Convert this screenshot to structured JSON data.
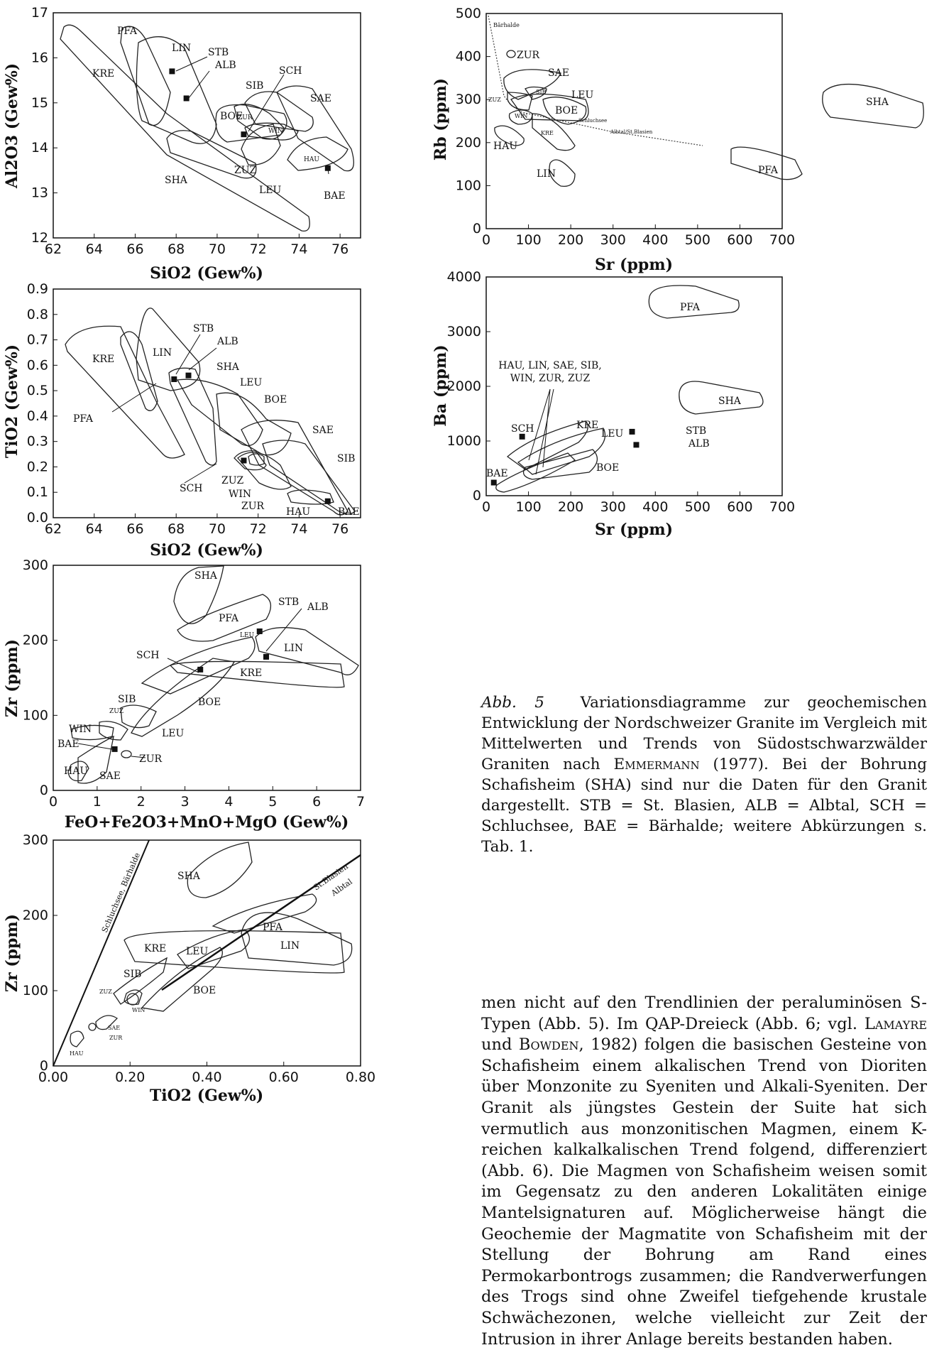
{
  "charts": [
    {
      "id": "al2o3_sio2",
      "xlabel": "SiO2 (Gew%)",
      "ylabel": "Al2O3 (Gew%)",
      "xticks": [
        "62",
        "64",
        "66",
        "68",
        "70",
        "72",
        "74",
        "76"
      ],
      "yticks": [
        "12",
        "13",
        "14",
        "15",
        "16",
        "17"
      ]
    },
    {
      "id": "tio2_sio2",
      "xlabel": "SiO2 (Gew%)",
      "ylabel": "TiO2 (Gew%)",
      "xticks": [
        "62",
        "64",
        "66",
        "68",
        "70",
        "72",
        "74",
        "76"
      ],
      "yticks": [
        "0.0",
        "0.1",
        "0.2",
        "0.3",
        "0.4",
        "0.5",
        "0.6",
        "0.7",
        "0.8",
        "0.9"
      ]
    },
    {
      "id": "zr_femg",
      "xlabel": "FeO+Fe2O3+MnO+MgO (Gew%)",
      "ylabel": "Zr (ppm)",
      "xticks": [
        "0",
        "1",
        "2",
        "3",
        "4",
        "5",
        "6",
        "7"
      ],
      "yticks": [
        "0",
        "100",
        "200",
        "300"
      ]
    },
    {
      "id": "zr_tio2",
      "xlabel": "TiO2 (Gew%)",
      "ylabel": "Zr (ppm)",
      "xticks": [
        "0.00",
        "0.20",
        "0.40",
        "0.60",
        "0.80"
      ],
      "yticks": [
        "0",
        "100",
        "200",
        "300"
      ],
      "trend_labels": [
        "Schluchsee, Bärhalde",
        "St.Blasien",
        "Albtal"
      ]
    },
    {
      "id": "rb_sr",
      "xlabel": "Sr (ppm)",
      "ylabel": "Rb (ppm)",
      "xticks": [
        "0",
        "100",
        "200",
        "300",
        "400",
        "500",
        "600",
        "700"
      ],
      "yticks": [
        "0",
        "100",
        "200",
        "300",
        "400",
        "500"
      ],
      "trend_labels": [
        "Bärhalde",
        "Albtal/St.Blasien",
        "Schluchsee"
      ]
    },
    {
      "id": "ba_sr",
      "xlabel": "Sr (ppm)",
      "ylabel": "Ba (ppm)",
      "xticks": [
        "0",
        "100",
        "200",
        "300",
        "400",
        "500",
        "600",
        "700"
      ],
      "yticks": [
        "0",
        "1000",
        "2000",
        "3000",
        "4000"
      ],
      "group_label_1": "HAU, LIN, SAE, SIB,",
      "group_label_2": "WIN, ZUR, ZUZ"
    }
  ],
  "chart_data": [
    {
      "type": "scatter",
      "id": "al2o3_sio2",
      "xlim": [
        62,
        77
      ],
      "ylim": [
        12,
        17
      ],
      "points": [
        {
          "name": "STB",
          "x": 67.8,
          "y": 15.7
        },
        {
          "name": "ALB",
          "x": 68.5,
          "y": 15.1
        },
        {
          "name": "SCH",
          "x": 71.3,
          "y": 14.3
        },
        {
          "name": "BAE",
          "x": 75.4,
          "y": 13.55
        }
      ],
      "fields": [
        "PFA",
        "LIN",
        "KRE",
        "SHA",
        "BOE",
        "ZUR",
        "WIN",
        "SIB",
        "SAE",
        "HAU",
        "ZUZ",
        "LEU"
      ]
    },
    {
      "type": "scatter",
      "id": "tio2_sio2",
      "xlim": [
        62,
        77
      ],
      "ylim": [
        0.0,
        0.9
      ],
      "points": [
        {
          "name": "STB",
          "x": 67.9,
          "y": 0.545
        },
        {
          "name": "ALB",
          "x": 68.6,
          "y": 0.56
        },
        {
          "name": "SCH",
          "x": 71.3,
          "y": 0.225
        },
        {
          "name": "BAE",
          "x": 75.4,
          "y": 0.065
        }
      ],
      "fields": [
        "KRE",
        "PFA",
        "LIN",
        "SHA",
        "LEU",
        "BOE",
        "SAE",
        "SIB",
        "ZUZ",
        "WIN",
        "ZUR",
        "HAU"
      ]
    },
    {
      "type": "scatter",
      "id": "zr_femg",
      "xlim": [
        0,
        7
      ],
      "ylim": [
        0,
        300
      ],
      "points": [
        {
          "name": "STB",
          "x": 4.7,
          "y": 212
        },
        {
          "name": "ALB",
          "x": 4.85,
          "y": 178
        },
        {
          "name": "SCH",
          "x": 3.35,
          "y": 161
        },
        {
          "name": "BAE",
          "x": 1.4,
          "y": 55
        }
      ],
      "fields": [
        "SHA",
        "PFA",
        "LEU",
        "LIN",
        "KRE",
        "BOE",
        "SIB",
        "ZUZ",
        "WIN",
        "ZUR",
        "HAU",
        "SAE"
      ]
    },
    {
      "type": "scatter",
      "id": "zr_tio2",
      "xlim": [
        0.0,
        0.8
      ],
      "ylim": [
        0,
        300
      ],
      "points": [],
      "fields": [
        "SHA",
        "PFA",
        "LIN",
        "KRE",
        "LEU",
        "SIB",
        "ZUZ",
        "WIN",
        "BOE",
        "SAE",
        "ZUR",
        "HAU"
      ]
    },
    {
      "type": "scatter",
      "id": "rb_sr",
      "xlim": [
        0,
        700
      ],
      "ylim": [
        0,
        500
      ],
      "points": [],
      "fields": [
        "ZUR",
        "SAE",
        "SIB",
        "ZUZ",
        "LEU",
        "BOE",
        "WIN",
        "KRE",
        "HAU",
        "LIN",
        "SHA",
        "PFA"
      ]
    },
    {
      "type": "scatter",
      "id": "ba_sr",
      "xlim": [
        0,
        700
      ],
      "ylim": [
        0,
        4000
      ],
      "points": [
        {
          "name": "SCH",
          "x": 85,
          "y": 1080
        },
        {
          "name": "STB",
          "x": 345,
          "y": 1170
        },
        {
          "name": "ALB",
          "x": 355,
          "y": 930
        },
        {
          "name": "BAE",
          "x": 18,
          "y": 240
        }
      ],
      "fields": [
        "PFA",
        "SHA",
        "KRE",
        "LEU",
        "BOE"
      ]
    }
  ],
  "caption": {
    "label": "Abb. 5",
    "text_1": "Variationsdiagramme zur geochemischen Entwicklung der Nordschweizer Granite im Vergleich mit Mittelwerten und Trends von Südostschwarzwälder Graniten nach ",
    "author": "Emmermann",
    "text_2": " (1977). Bei der Bohrung Schafisheim (SHA) sind nur die Daten für den Granit dargestellt. STB = St. Blasien, ALB = Albtal, SCH = Schluchsee, BAE = Bärhalde; weitere Abkürzungen s. Tab. 1."
  },
  "body": {
    "text_1": "men nicht auf den Trendlinien der peraluminösen S-Typen (Abb. 5). Im QAP-Dreieck (Abb. 6; vgl. ",
    "author_1": "Lamayre",
    "text_2": " und ",
    "author_2": "Bowden",
    "text_3": ", 1982) folgen die basischen Gesteine von Schafisheim einem alkalischen Trend von Dioriten über Monzonite zu Syeniten und Alkali-Syeniten. Der Granit als jüngstes Gestein der Suite hat sich vermutlich aus monzonitischen Magmen, einem K-reichen kalkalkalischen Trend folgend, differenziert (Abb. 6). Die Magmen von Schafisheim weisen somit im Gegensatz zu den anderen Lokalitäten einige Mantelsignaturen auf. Möglicherweise hängt die Geochemie der Magmatite von Schafisheim mit der Stellung der Bohrung am Rand eines Permokarbontrogs zusammen; die Randverwerfungen des Trogs sind ohne Zweifel tiefgehende krustale Schwächezonen, welche vielleicht zur Zeit der Intrusion in ihrer Anlage bereits bestanden haben."
  }
}
